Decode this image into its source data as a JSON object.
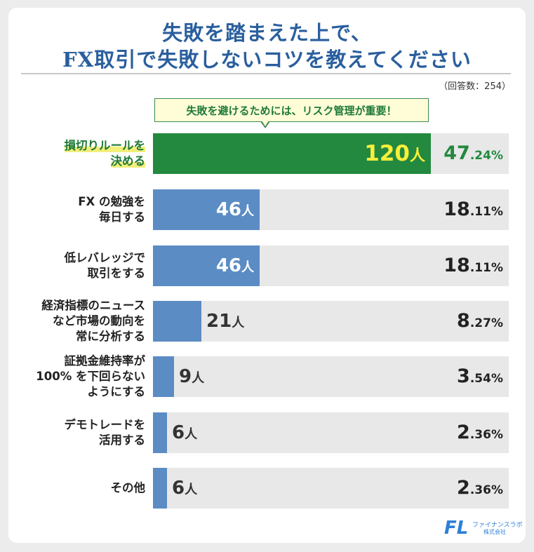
{
  "title_line1": "失敗を踏まえた上で、",
  "title_line2": "FX取引で失敗しないコツを教えてください",
  "respondents": "（回答数：254）",
  "callout": "失敗を避けるためには、リスク管理が重要！",
  "count_unit": "人",
  "logo": {
    "mark": "FL",
    "name": "ファイナンスラボ",
    "company": "株式会社"
  },
  "colors": {
    "top": "#23893f",
    "bar": "#5b8cc4",
    "track": "#e8e8e8",
    "title": "#2a5f9e",
    "highlight": "#f7ef3a"
  },
  "chart_data": {
    "type": "bar",
    "orientation": "horizontal",
    "total": 254,
    "max_value": 120,
    "categories": [
      {
        "label_lines": [
          "損切りルールを",
          "決める"
        ],
        "count": "120",
        "pct_int": "47",
        "pct_dec": ".24%"
      },
      {
        "label_lines": [
          "FX の勉強を",
          "毎日する"
        ],
        "count": "46",
        "pct_int": "18",
        "pct_dec": ".11%"
      },
      {
        "label_lines": [
          "低レバレッジで",
          "取引をする"
        ],
        "count": "46",
        "pct_int": "18",
        "pct_dec": ".11%"
      },
      {
        "label_lines": [
          "経済指標のニュース",
          "など市場の動向を",
          "常に分析する"
        ],
        "count": "21",
        "pct_int": "8",
        "pct_dec": ".27%"
      },
      {
        "label_lines": [
          "証拠金維持率が",
          "100% を下回らない",
          "ようにする"
        ],
        "count": "9",
        "pct_int": "3",
        "pct_dec": ".54%"
      },
      {
        "label_lines": [
          "デモトレードを",
          "活用する"
        ],
        "count": "6",
        "pct_int": "2",
        "pct_dec": ".36%"
      },
      {
        "label_lines": [
          "その他"
        ],
        "count": "6",
        "pct_int": "2",
        "pct_dec": ".36%"
      }
    ]
  }
}
